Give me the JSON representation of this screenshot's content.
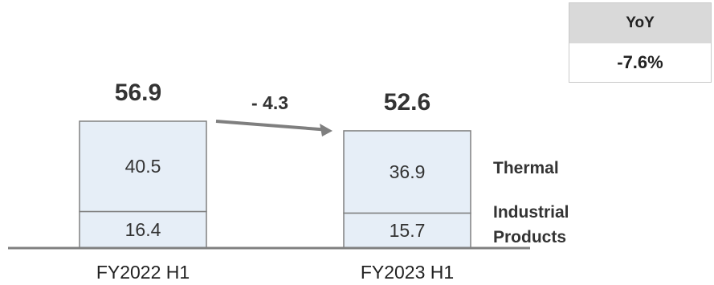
{
  "yoy": {
    "label": "YoY",
    "value": "-7.6%"
  },
  "chart_data": {
    "type": "bar",
    "stacked": true,
    "categories": [
      "FY2022 H1",
      "FY2023 H1"
    ],
    "series": [
      {
        "name": "Industrial Products",
        "values": [
          16.4,
          15.7
        ]
      },
      {
        "name": "Thermal",
        "values": [
          40.5,
          36.9
        ]
      }
    ],
    "totals": [
      56.9,
      52.6
    ],
    "change_label": "- 4.3",
    "legend": [
      "Thermal",
      "Industrial Products"
    ],
    "title": "",
    "xlabel": "",
    "ylabel": "",
    "ylim": [
      0,
      56.9
    ],
    "grid": false,
    "colors": {
      "bar_fill": "#e6eef7",
      "bar_stroke": "#808080",
      "axis": "#808080",
      "arrow": "#7f7f7f"
    }
  }
}
